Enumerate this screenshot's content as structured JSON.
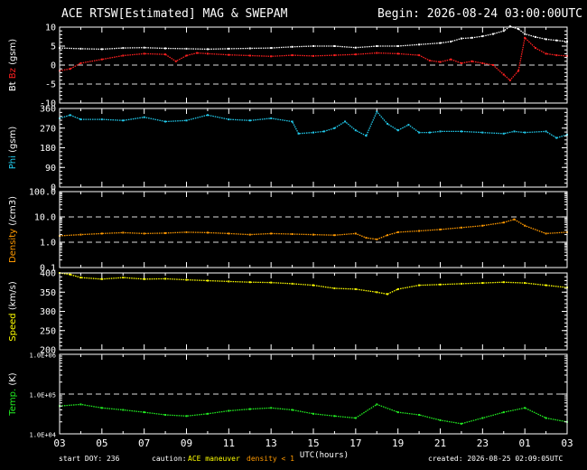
{
  "header": {
    "title": "ACE RTSW[Estimated] MAG & SWEPAM",
    "begin": "Begin: 2026-08-24 03:00:00UTC"
  },
  "footer": {
    "start_doy": "start DOY: 236",
    "caution": "caution:",
    "maneuver": "ACE maneuver",
    "density_note": "density < 1",
    "created": "created: 2026-08-25 02:09:05UTC"
  },
  "colors": {
    "bt": "#ffffff",
    "bz": "#ff2020",
    "phi": "#22ccee",
    "density": "#ff9900",
    "speed": "#ffff00",
    "temp": "#22ee22",
    "axes": "#ffffff",
    "ref_line": "#dddddd"
  },
  "chart_data": {
    "type": "scatter",
    "x_label": "UTC(hours)",
    "x_ticks": [
      "03",
      "05",
      "07",
      "09",
      "11",
      "13",
      "15",
      "17",
      "19",
      "21",
      "23",
      "01",
      "03"
    ],
    "x_range_hours": [
      0,
      24
    ],
    "panels": [
      {
        "id": "mag",
        "ylabel_parts": [
          "Bt",
          "Bz",
          "(gsm)"
        ],
        "ylim": [
          -10,
          10
        ],
        "scale": "linear",
        "ticks": [
          10,
          5,
          0,
          -5,
          -10
        ],
        "tick_labels": [
          "10",
          "5",
          "0",
          "-5",
          "-10"
        ],
        "ref_lines": [
          0,
          -5
        ],
        "series": [
          {
            "name": "Bt",
            "color_key": "bt",
            "x": [
              0,
              1,
              2,
              3,
              4,
              5,
              6,
              7,
              8,
              9,
              10,
              11,
              12,
              13,
              14,
              15,
              16,
              17,
              18,
              18.5,
              19,
              19.5,
              20,
              20.5,
              21,
              21.3,
              21.7,
              22,
              22.5,
              23,
              23.5,
              24
            ],
            "y": [
              4.5,
              4.3,
              4.2,
              4.5,
              4.6,
              4.4,
              4.3,
              4.2,
              4.3,
              4.4,
              4.5,
              4.8,
              5.0,
              5.0,
              4.6,
              5.0,
              5.0,
              5.4,
              5.8,
              6.2,
              7.0,
              7.2,
              7.6,
              8.2,
              9.0,
              10.2,
              9.5,
              8.2,
              7.4,
              6.8,
              6.5,
              6.2
            ]
          },
          {
            "name": "Bz",
            "color_key": "bz",
            "x": [
              0,
              0.5,
              1,
              2,
              3,
              4,
              5,
              5.5,
              6,
              6.5,
              7,
              8,
              9,
              10,
              11,
              12,
              13,
              14,
              15,
              16,
              17,
              17.5,
              18,
              18.5,
              19,
              19.5,
              20,
              20.5,
              21,
              21.3,
              21.7,
              22,
              22.5,
              23,
              23.5,
              24
            ],
            "y": [
              -1.5,
              -1.0,
              0.5,
              1.5,
              2.5,
              3.0,
              2.8,
              1.0,
              2.5,
              3.2,
              3.0,
              2.7,
              2.5,
              2.3,
              2.6,
              2.4,
              2.6,
              2.8,
              3.2,
              3.0,
              2.6,
              1.2,
              0.8,
              1.5,
              0.5,
              1.0,
              0.5,
              0.0,
              -2.5,
              -4.0,
              -1.5,
              7.2,
              4.5,
              3.0,
              2.6,
              2.4
            ]
          }
        ]
      },
      {
        "id": "phi",
        "ylabel_parts": [
          "Phi",
          "(gsm)"
        ],
        "ylim": [
          0,
          360
        ],
        "scale": "linear",
        "ticks": [
          360,
          270,
          180,
          90,
          0
        ],
        "tick_labels": [
          "360",
          "270",
          "180",
          "90",
          "0"
        ],
        "series": [
          {
            "name": "Phi",
            "color_key": "phi",
            "x": [
              0,
              0.5,
              1,
              2,
              3,
              4,
              5,
              6,
              7,
              8,
              9,
              10,
              11,
              11.3,
              12,
              12.5,
              13,
              13.5,
              14,
              14.5,
              15,
              15.5,
              16,
              16.5,
              17,
              17.5,
              18,
              19,
              20,
              21,
              21.5,
              22,
              23,
              23.5,
              24
            ],
            "y": [
              315,
              330,
              310,
              310,
              305,
              320,
              300,
              305,
              330,
              310,
              305,
              315,
              300,
              245,
              250,
              255,
              270,
              300,
              260,
              235,
              345,
              290,
              260,
              285,
              250,
              250,
              255,
              255,
              250,
              245,
              255,
              250,
              255,
              225,
              240
            ]
          }
        ]
      },
      {
        "id": "density",
        "ylabel_parts": [
          "Density",
          "(/cm3)"
        ],
        "ylim": [
          0.1,
          100
        ],
        "scale": "log",
        "ticks": [
          100,
          10,
          1,
          0.1
        ],
        "tick_labels": [
          "100.0",
          "10.0",
          "1.0",
          "0.1"
        ],
        "ref_lines": [
          10,
          1
        ],
        "series": [
          {
            "name": "Density",
            "color_key": "density",
            "x": [
              0,
              1,
              2,
              3,
              4,
              5,
              6,
              7,
              8,
              9,
              10,
              11,
              12,
              13,
              14,
              14.5,
              15,
              15.5,
              16,
              17,
              18,
              19,
              20,
              21,
              21.5,
              22,
              23,
              24
            ],
            "y": [
              1.8,
              2.0,
              2.2,
              2.4,
              2.2,
              2.3,
              2.5,
              2.4,
              2.2,
              2.0,
              2.2,
              2.1,
              2.0,
              1.9,
              2.2,
              1.5,
              1.3,
              1.9,
              2.5,
              2.8,
              3.2,
              3.8,
              4.5,
              6.0,
              8.0,
              4.5,
              2.2,
              2.5
            ]
          }
        ]
      },
      {
        "id": "speed",
        "ylabel_parts": [
          "Speed",
          "(km/s)"
        ],
        "ylim": [
          200,
          400
        ],
        "scale": "linear",
        "ticks": [
          400,
          350,
          300,
          250,
          200
        ],
        "tick_labels": [
          "400",
          "350",
          "300",
          "250",
          "200"
        ],
        "series": [
          {
            "name": "Speed",
            "color_key": "speed",
            "x": [
              0,
              0.5,
              1,
              2,
              3,
              4,
              5,
              6,
              7,
              8,
              9,
              10,
              11,
              12,
              13,
              14,
              15,
              15.5,
              16,
              17,
              18,
              19,
              20,
              21,
              22,
              23,
              24
            ],
            "y": [
              400,
              396,
              388,
              384,
              388,
              384,
              385,
              382,
              380,
              378,
              376,
              375,
              372,
              368,
              360,
              358,
              350,
              345,
              358,
              368,
              370,
              372,
              374,
              376,
              374,
              368,
              362
            ]
          }
        ]
      },
      {
        "id": "temp",
        "ylabel_parts": [
          "Temp.",
          "(K)"
        ],
        "ylim": [
          10000,
          1000000
        ],
        "scale": "log",
        "ticks": [
          1000000,
          100000,
          10000
        ],
        "tick_labels": [
          "1.0E+06",
          "1.0E+05",
          "1.0E+04"
        ],
        "ref_lines": [
          100000
        ],
        "series": [
          {
            "name": "Temp.",
            "color_key": "temp",
            "x": [
              0,
              1,
              2,
              3,
              4,
              5,
              6,
              7,
              8,
              9,
              10,
              11,
              12,
              13,
              14,
              15,
              16,
              17,
              18,
              19,
              20,
              21,
              22,
              23,
              24
            ],
            "y": [
              50000,
              55000,
              45000,
              40000,
              35000,
              30000,
              28000,
              32000,
              38000,
              42000,
              45000,
              40000,
              32000,
              28000,
              25000,
              55000,
              35000,
              30000,
              22000,
              18000,
              25000,
              35000,
              45000,
              25000,
              20000
            ]
          }
        ]
      }
    ]
  }
}
